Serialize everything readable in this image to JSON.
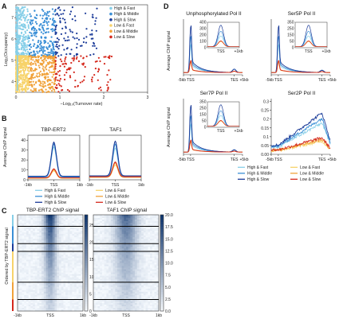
{
  "colors": {
    "high_fast": "#87cfe8",
    "high_middle": "#3a8fd6",
    "high_slow": "#1c3c99",
    "low_fast": "#f7d36b",
    "low_middle": "#f1a23a",
    "low_slow": "#d5281c",
    "heat_low": "#f7fbff",
    "heat_high": "#08306b"
  },
  "panel_labels": [
    "A",
    "B",
    "C",
    "D"
  ],
  "panel_a": {
    "legend": [
      "High & Fast",
      "High & Middle",
      "High & Slow",
      "Low & Fast",
      "Low & Middle",
      "Low & Slow"
    ],
    "chart_data": {
      "type": "scatter",
      "xlabel": "−Log₁₀(Turnover rate)",
      "ylabel": "Log₂(Occupancy)",
      "xlim": [
        0,
        3
      ],
      "ylim": [
        3.5,
        7.6
      ],
      "xticks": [
        "0",
        "1",
        "2",
        "3"
      ],
      "yticks": [
        "4",
        "5",
        "6",
        "7"
      ],
      "groups": [
        {
          "name": "High & Fast",
          "x": [
            0,
            0.3
          ],
          "y": [
            5.2,
            7.5
          ]
        },
        {
          "name": "High & Middle",
          "x": [
            0.3,
            0.9
          ],
          "y": [
            5.2,
            7.4
          ]
        },
        {
          "name": "High & Slow",
          "x": [
            0.9,
            1.9
          ],
          "y": [
            5.2,
            7.6
          ]
        },
        {
          "name": "Low & Fast",
          "x": [
            0,
            0.3
          ],
          "y": [
            3.5,
            5.2
          ]
        },
        {
          "name": "Low & Middle",
          "x": [
            0.3,
            0.9
          ],
          "y": [
            3.5,
            5.2
          ]
        },
        {
          "name": "Low & Slow",
          "x": [
            0.9,
            2.2
          ],
          "y": [
            3.5,
            5.2
          ]
        }
      ]
    }
  },
  "panel_b": {
    "ylabel": "Average ChIP signal",
    "legend": [
      "High & Fast",
      "Low & Fast",
      "High & Middle",
      "Low & Middle",
      "High & Slow",
      "Low & Slow"
    ],
    "chart_data": [
      {
        "type": "line",
        "title": "TBP-ERT2",
        "xticks": [
          "-1kb",
          "TSS",
          "1kb"
        ],
        "yticks": [
          "0",
          "10",
          "20",
          "30",
          "40"
        ],
        "ylim": [
          0,
          45
        ],
        "series": [
          {
            "name": "High & Fast",
            "peak": 33,
            "base": 2.5
          },
          {
            "name": "High & Middle",
            "peak": 36,
            "base": 3
          },
          {
            "name": "High & Slow",
            "peak": 38,
            "base": 3.5
          },
          {
            "name": "Low & Fast",
            "peak": 9,
            "base": 1.5
          },
          {
            "name": "Low & Middle",
            "peak": 10,
            "base": 1.8
          },
          {
            "name": "Low & Slow",
            "peak": 11,
            "base": 2
          }
        ]
      },
      {
        "type": "line",
        "title": "TAF1",
        "xticks": [
          "-1kb",
          "TSS",
          "1kb"
        ],
        "yticks": [],
        "ylim": [
          0,
          45
        ],
        "series": [
          {
            "name": "High & Fast",
            "peak": 32,
            "base": 3
          },
          {
            "name": "High & Middle",
            "peak": 36,
            "base": 3.5
          },
          {
            "name": "High & Slow",
            "peak": 39,
            "base": 4
          },
          {
            "name": "Low & Fast",
            "peak": 15,
            "base": 2.5
          },
          {
            "name": "Low & Middle",
            "peak": 17,
            "base": 3
          },
          {
            "name": "Low & Slow",
            "peak": 18,
            "base": 3
          }
        ]
      }
    ]
  },
  "panel_c": {
    "titles": [
      "TBP-ERT2 ChIP signal",
      "TAF1 ChIP signal"
    ],
    "ylabel": "Ordered by TBP-ERT2 signal",
    "xticks": [
      "-1kb",
      "TSS",
      "1kb"
    ],
    "colorbar1_ticks": [
      "0",
      "5",
      "10",
      "15",
      "20",
      "25"
    ],
    "colorbar2_ticks": [
      "0.0",
      "2.5",
      "5.0",
      "7.5",
      "10.0",
      "12.5",
      "15.0",
      "17.5",
      "20.0"
    ],
    "chart_data": {
      "type": "heatmap",
      "zlim1": [
        0,
        28
      ],
      "zlim2": [
        0,
        20
      ]
    }
  },
  "panel_d": {
    "ylabel": "Average ChIP signal",
    "legend": [
      "High & Fast",
      "Low & Fast",
      "High & Middle",
      "Low & Middle",
      "High & Slow",
      "Low & Slow"
    ],
    "xticks": [
      "-5kb",
      "TSS",
      "TES",
      "+5kb"
    ],
    "chart_data": [
      {
        "type": "line",
        "title": "Unphosphorylated Pol II",
        "inset": {
          "yticks": [
            "0",
            "100",
            "200",
            "300",
            "400"
          ],
          "xticks": [
            "TSS",
            "+1kb"
          ]
        }
      },
      {
        "type": "line",
        "title": "Ser5P Pol II",
        "inset": {
          "yticks": [
            "0",
            "50",
            "150",
            "250",
            "350"
          ],
          "xticks": [
            "TSS",
            "+1kb"
          ]
        }
      },
      {
        "type": "line",
        "title": "Ser7P Pol II",
        "inset": {
          "yticks": [
            "0",
            "50",
            "150",
            "250",
            "350"
          ],
          "xticks": [
            "TSS",
            "+1kb"
          ]
        }
      },
      {
        "type": "line",
        "title": "Ser2P Pol II",
        "yticks": [
          "0.00",
          "0.05",
          "0.1",
          "0.15",
          "0.2",
          "0.25",
          "0.3"
        ],
        "ylim": [
          0,
          0.3
        ]
      }
    ]
  }
}
